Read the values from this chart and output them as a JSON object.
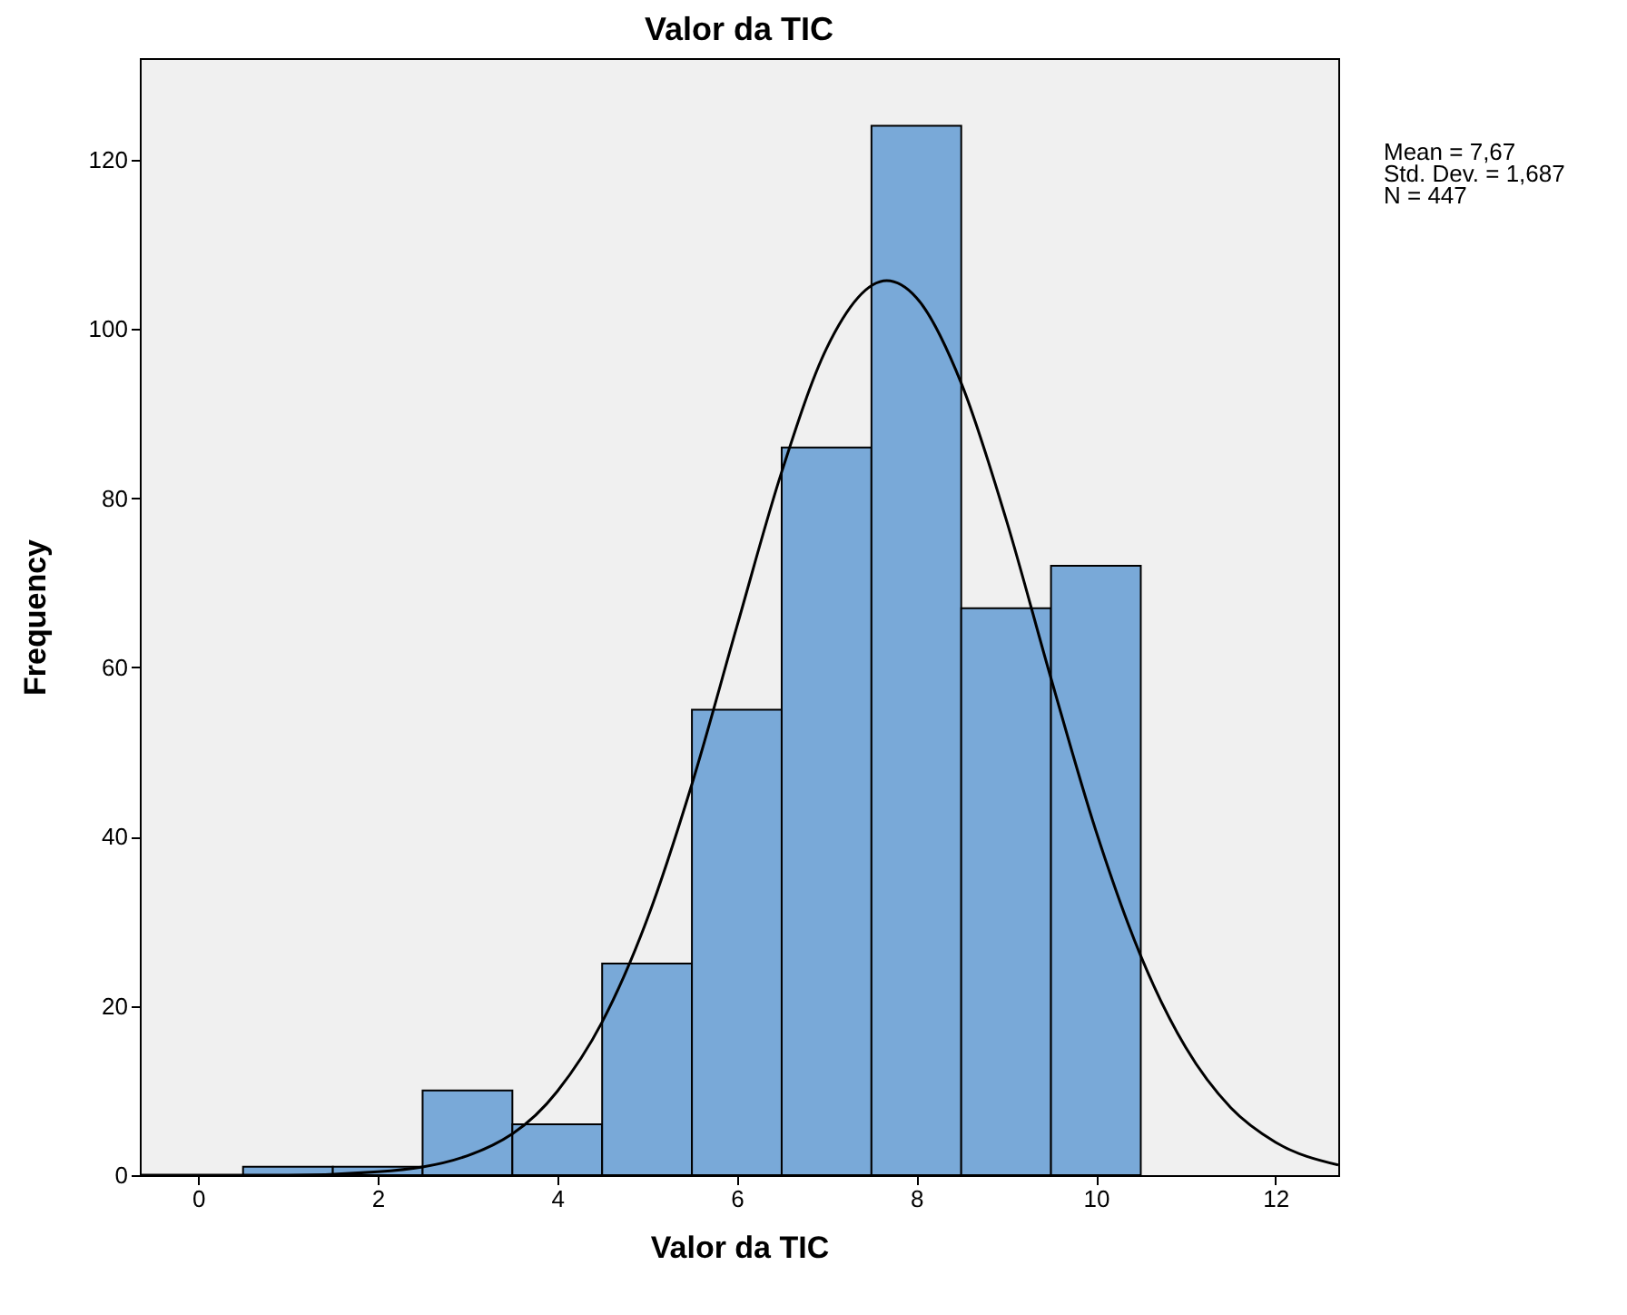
{
  "chart_data": {
    "type": "histogram",
    "title": "Valor da TIC",
    "xlabel": "Valor da TIC",
    "ylabel": "Frequency",
    "bins": [
      0.5,
      1.5,
      2.5,
      3.5,
      4.5,
      5.5,
      6.5,
      7.5,
      8.5,
      9.5,
      10.5
    ],
    "values": [
      1,
      1,
      10,
      6,
      25,
      55,
      86,
      124,
      67,
      72
    ],
    "color": "#79a9d8",
    "xlim": [
      -0.65,
      12.7
    ],
    "xticks": [
      0,
      2,
      4,
      6,
      8,
      10,
      12
    ],
    "ylim": [
      0,
      132
    ],
    "yticks": [
      0,
      20,
      40,
      60,
      80,
      100,
      120
    ],
    "series": [
      {
        "type": "line",
        "color": "#000000",
        "x": [
          -0.65,
          0,
          1,
          2,
          3,
          4,
          4.5,
          5,
          5.5,
          6,
          6.5,
          7,
          7.67,
          8,
          8.5,
          9,
          9.5,
          10,
          10.5,
          11,
          11.5,
          12,
          12.7
        ],
        "values": [
          0,
          0,
          0,
          0.4,
          2.3,
          9.9,
          18.1,
          30.2,
          46.2,
          64.8,
          83.1,
          97.7,
          105.7,
          103.7,
          93.6,
          77.5,
          58.7,
          40.7,
          25.9,
          15.1,
          8,
          3.9,
          1.2
        ]
      }
    ],
    "annotations": [
      "Mean = 7,67",
      "Std. Dev. = 1,687",
      "N = 447"
    ]
  }
}
